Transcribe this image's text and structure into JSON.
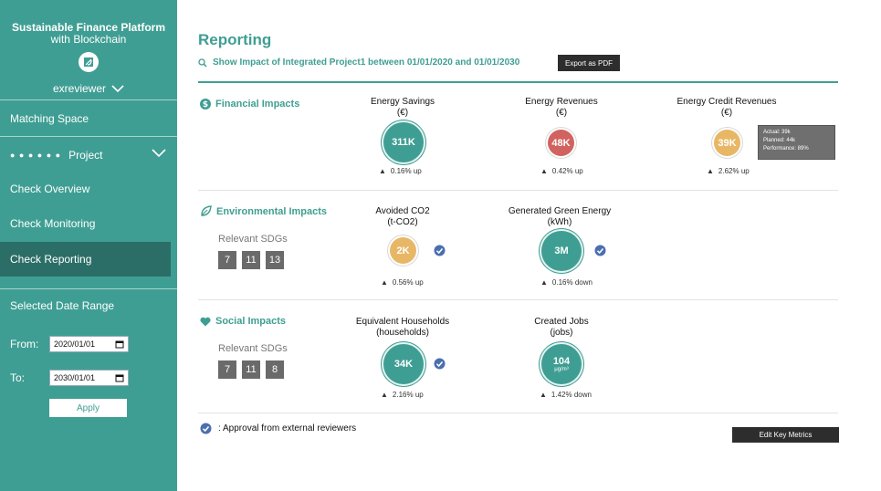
{
  "sidebar": {
    "brand_line1": "Sustainable Finance Platform",
    "brand_line2": "with Blockchain",
    "username": "exreviewer",
    "nav": {
      "matching_space": "Matching Space",
      "project_dots": "● ● ● ● ● ●",
      "project": "Project",
      "check_overview": "Check Overview",
      "check_monitoring": "Check Monitoring",
      "check_reporting": "Check Reporting"
    },
    "date_range": {
      "title": "Selected Date Range",
      "from_label": "From:",
      "from_value": "2020/01/01",
      "to_label": "To:",
      "to_value": "2030/01/01",
      "apply": "Apply"
    }
  },
  "main": {
    "title": "Reporting",
    "impact_line": "Show Impact of Integrated Project1 between 01/01/2020 and 01/01/2030",
    "export_button": "Export as PDF",
    "financial": {
      "heading": "Financial Impacts",
      "metrics": [
        {
          "title": "Energy Savings",
          "unit": "(€)",
          "value": "311K",
          "delta": "0.16% up",
          "color": "teal"
        },
        {
          "title": "Energy Revenues",
          "unit": "(€)",
          "value": "48K",
          "delta": "0.42% up",
          "color": "red"
        },
        {
          "title": "Energy Credit Revenues",
          "unit": "(€)",
          "value": "39K",
          "delta": "2.62% up",
          "color": "amber"
        }
      ],
      "tooltip": {
        "actual": "Actual: 39k",
        "planned": "Planned: 44k",
        "performance": "Performance: 89%"
      }
    },
    "environmental": {
      "heading": "Environmental Impacts",
      "sdg_label": "Relevant SDGs",
      "sdgs": [
        "7",
        "11",
        "13"
      ],
      "metrics": [
        {
          "title": "Avoided CO2",
          "unit": "(t-CO2)",
          "value": "2K",
          "delta": "0.56% up",
          "verified": true
        },
        {
          "title": "Generated Green Energy",
          "unit": "(kWh)",
          "value": "3M",
          "delta": "0.16% down",
          "verified": true
        }
      ]
    },
    "social": {
      "heading": "Social Impacts",
      "sdg_label": "Relevant SDGs",
      "sdgs": [
        "7",
        "11",
        "8"
      ],
      "metrics": [
        {
          "title": "Equivalent Households",
          "unit": "(households)",
          "value": "34K",
          "delta": "2.16% up",
          "verified": true
        },
        {
          "title": "Created Jobs",
          "unit": "(jobs)",
          "value": "104",
          "value_unit": "μg/m³",
          "delta": "1.42% down",
          "verified": false
        }
      ]
    },
    "approval_text": ": Approval from external reviewers",
    "edit_button": "Edit Key Metrics"
  },
  "colors": {
    "teal": "#3f9e93",
    "teal_dark": "#2b6e67",
    "amber": "#e8b766",
    "red": "#d2625f",
    "verify_blue": "#4a6fb0"
  }
}
